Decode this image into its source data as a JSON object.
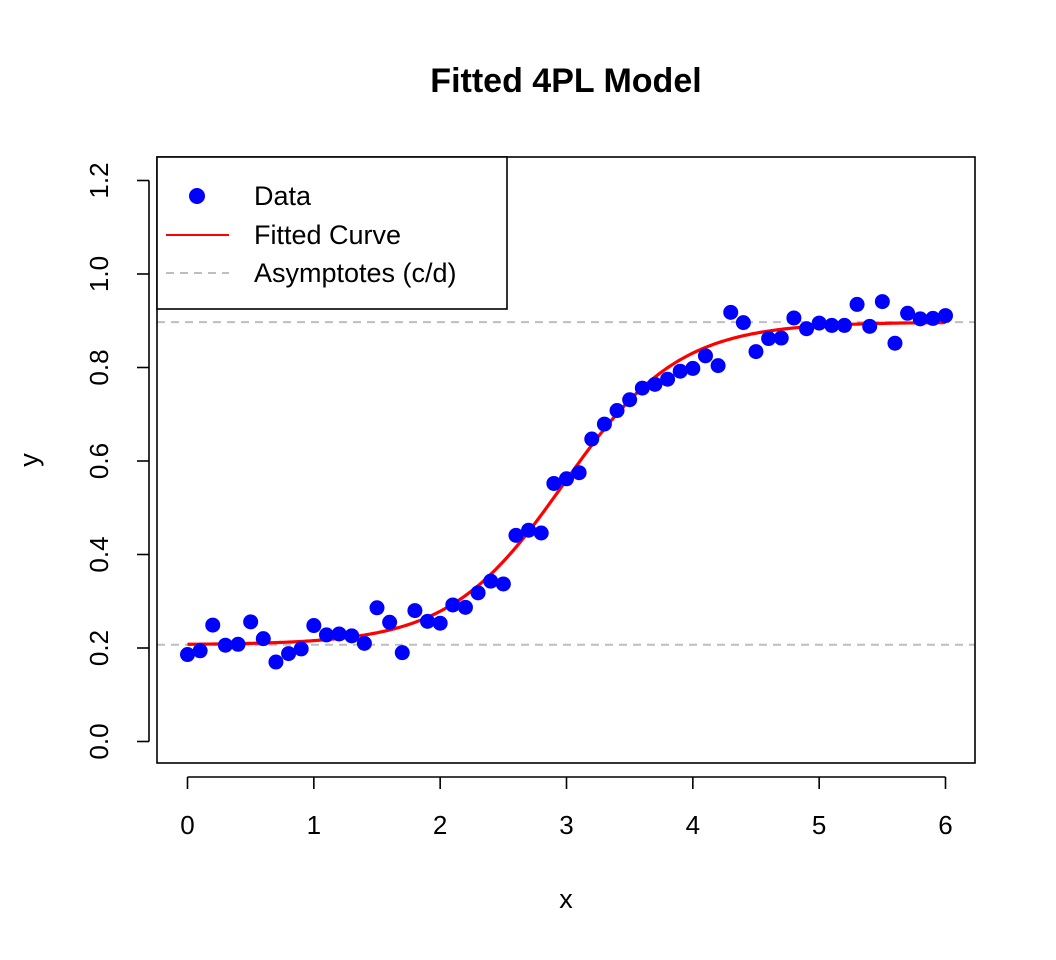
{
  "chart_data": {
    "type": "scatter",
    "title": "Fitted 4PL Model",
    "xlabel": "x",
    "ylabel": "y",
    "xlim": [
      0,
      6
    ],
    "ylim": [
      0,
      1.2
    ],
    "x_ticks": [
      "0",
      "1",
      "2",
      "3",
      "4",
      "5",
      "6"
    ],
    "y_ticks": [
      "0.0",
      "0.2",
      "0.4",
      "0.6",
      "0.8",
      "1.0",
      "1.2"
    ],
    "grid": false,
    "legend_position": "top-left",
    "legend": [
      {
        "label": "Data",
        "kind": "point",
        "color": "#0000ff"
      },
      {
        "label": "Fitted Curve",
        "kind": "line",
        "color": "#ff0000"
      },
      {
        "label": "Asymptotes (c/d)",
        "kind": "dashed-line",
        "color": "#bebebe"
      }
    ],
    "series": [
      {
        "name": "Data",
        "kind": "points",
        "color": "#0000ff",
        "x": [
          0.0,
          0.1,
          0.2,
          0.3,
          0.4,
          0.5,
          0.6,
          0.7,
          0.8,
          0.9,
          1.0,
          1.1,
          1.2,
          1.3,
          1.4,
          1.5,
          1.6,
          1.7,
          1.8,
          1.9,
          2.0,
          2.1,
          2.2,
          2.3,
          2.4,
          2.5,
          2.6,
          2.7,
          2.8,
          2.9,
          3.0,
          3.1,
          3.2,
          3.3,
          3.4,
          3.5,
          3.6,
          3.7,
          3.8,
          3.9,
          4.0,
          4.1,
          4.2,
          4.3,
          4.4,
          4.5,
          4.6,
          4.7,
          4.8,
          4.9,
          5.0,
          5.1,
          5.2,
          5.3,
          5.4,
          5.5,
          5.6,
          5.7,
          5.8,
          5.9,
          6.0
        ],
        "y": [
          0.186,
          0.194,
          0.249,
          0.206,
          0.208,
          0.256,
          0.22,
          0.17,
          0.188,
          0.198,
          0.248,
          0.228,
          0.23,
          0.226,
          0.21,
          0.286,
          0.255,
          0.19,
          0.28,
          0.257,
          0.253,
          0.292,
          0.287,
          0.318,
          0.343,
          0.337,
          0.441,
          0.452,
          0.446,
          0.552,
          0.562,
          0.575,
          0.647,
          0.679,
          0.708,
          0.731,
          0.756,
          0.764,
          0.775,
          0.792,
          0.798,
          0.825,
          0.804,
          0.918,
          0.896,
          0.834,
          0.862,
          0.863,
          0.906,
          0.883,
          0.895,
          0.89,
          0.89,
          0.935,
          0.888,
          0.941,
          0.852,
          0.916,
          0.904,
          0.905,
          0.911
        ]
      },
      {
        "name": "Fitted Curve",
        "kind": "line",
        "color": "#ff0000",
        "model": "4PL",
        "params": {
          "c": 0.207,
          "d": 0.897,
          "e": 2.98,
          "b": 2.2
        },
        "x_range": [
          0,
          6
        ]
      }
    ],
    "asymptotes": [
      {
        "label": "c",
        "y": 0.207,
        "color": "#bebebe"
      },
      {
        "label": "d",
        "y": 0.897,
        "color": "#bebebe"
      }
    ]
  }
}
